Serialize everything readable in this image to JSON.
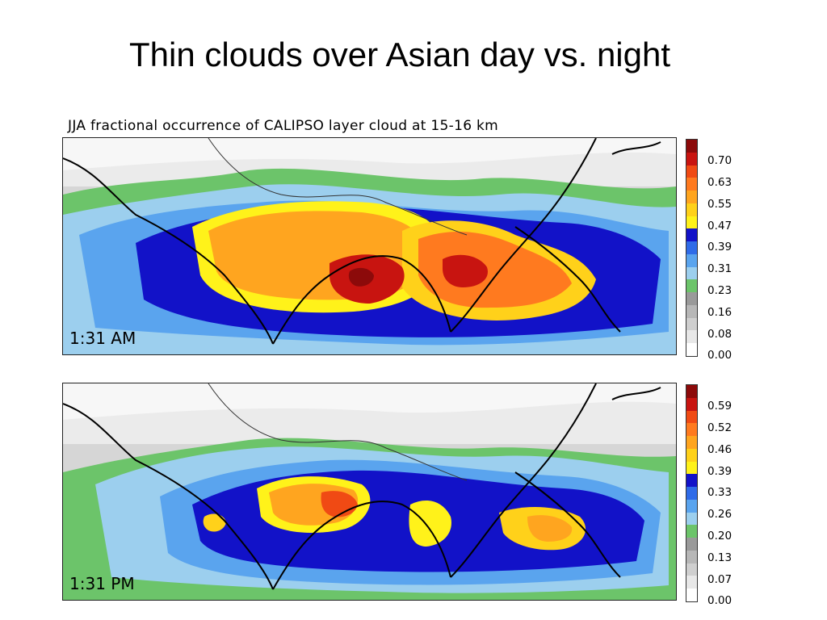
{
  "slide": {
    "title": "Thin clouds over Asian day vs. night"
  },
  "figure": {
    "title": "JJA fractional occurrence of CALIPSO layer cloud at 15-16 km"
  },
  "colors": {
    "scale": [
      "#ffffff",
      "#e8e8e8",
      "#cfcfcf",
      "#b7b7b7",
      "#9a9a9a",
      "#6cc46a",
      "#9ccfee",
      "#5aa4ee",
      "#2f6be8",
      "#1212c8",
      "#fff21a",
      "#ffd11a",
      "#ffa51f",
      "#ff7a1f",
      "#f04a14",
      "#c81410",
      "#8c0a0a"
    ]
  },
  "panels": [
    {
      "id": "night",
      "label": "1:31 AM",
      "colorbar_ticks": [
        "0.70",
        "0.63",
        "0.55",
        "0.47",
        "0.39",
        "0.31",
        "0.23",
        "0.16",
        "0.08",
        "0.00"
      ]
    },
    {
      "id": "day",
      "label": "1:31 PM",
      "colorbar_ticks": [
        "0.59",
        "0.52",
        "0.46",
        "0.39",
        "0.33",
        "0.26",
        "0.20",
        "0.13",
        "0.07",
        "0.00"
      ]
    }
  ]
}
